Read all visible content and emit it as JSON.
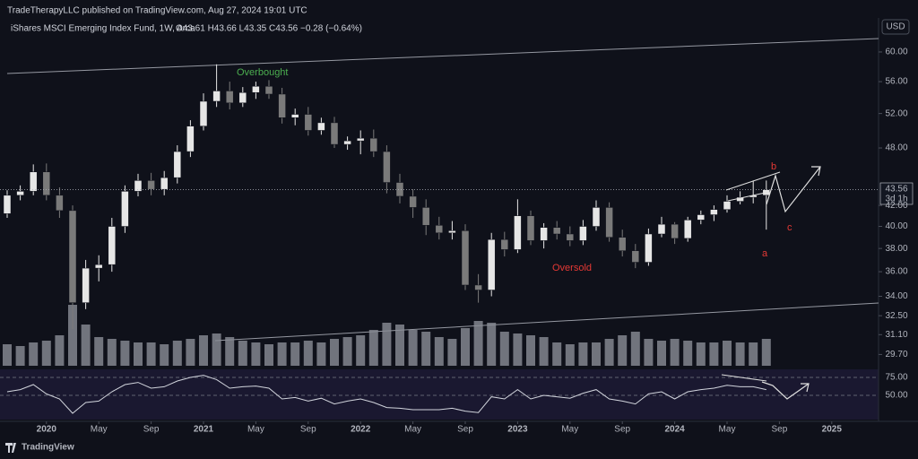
{
  "header": {
    "publisher": "TradeTherapyLLC published on TradingView.com, Aug 27, 2024 19:01 UTC",
    "brand": "TradingView"
  },
  "chart_data": {
    "type": "candlestick",
    "title": "iShares MSCI Emerging Index Fund, 1W, Arca",
    "ohlc_legend": "O43.61 H43.66 L43.35 C43.56 −0.28 (−0.64%)",
    "currency": "USD",
    "countdown": "3d 1h",
    "log_scale": true,
    "up_color": "#e6e6e6",
    "down_color": "#7a7a7a",
    "x": [
      "2019-10",
      "2019-11",
      "2019-12",
      "2020-01",
      "2020-02",
      "2020-03",
      "2020-04",
      "2020-05",
      "2020-06",
      "2020-07",
      "2020-08",
      "2020-09",
      "2020-10",
      "2020-11",
      "2020-12",
      "2021-01",
      "2021-02",
      "2021-03",
      "2021-04",
      "2021-05",
      "2021-06",
      "2021-07",
      "2021-08",
      "2021-09",
      "2021-10",
      "2021-11",
      "2021-12",
      "2022-01",
      "2022-02",
      "2022-03",
      "2022-04",
      "2022-05",
      "2022-06",
      "2022-07",
      "2022-08",
      "2022-09",
      "2022-10",
      "2022-11",
      "2022-12",
      "2023-01",
      "2023-02",
      "2023-03",
      "2023-04",
      "2023-05",
      "2023-06",
      "2023-07",
      "2023-08",
      "2023-09",
      "2023-10",
      "2023-11",
      "2023-12",
      "2024-01",
      "2024-02",
      "2024-03",
      "2024-04",
      "2024-05",
      "2024-06",
      "2024-07",
      "2024-08"
    ],
    "open": [
      41.2,
      43.0,
      43.4,
      45.4,
      43.0,
      41.5,
      33.5,
      36.3,
      36.6,
      40.0,
      43.4,
      44.5,
      43.6,
      44.8,
      47.6,
      50.5,
      53.5,
      54.8,
      53.3,
      54.6,
      55.4,
      54.4,
      51.5,
      51.9,
      50.0,
      50.9,
      48.4,
      48.8,
      49.1,
      47.6,
      44.3,
      42.9,
      41.8,
      40.1,
      39.4,
      39.6,
      34.9,
      34.5,
      38.8,
      37.9,
      41.0,
      38.7,
      39.9,
      39.3,
      38.7,
      40.0,
      41.8,
      39.0,
      37.8,
      36.8,
      39.3,
      40.2,
      38.9,
      40.6,
      41.1,
      41.6,
      42.4,
      42.8,
      43.0
    ],
    "high": [
      43.5,
      44.0,
      46.2,
      46.3,
      43.8,
      42.0,
      37.0,
      37.4,
      40.8,
      44.0,
      45.2,
      45.3,
      45.5,
      48.3,
      51.2,
      54.5,
      58.3,
      56.0,
      55.3,
      56.0,
      56.2,
      55.2,
      52.6,
      52.8,
      51.5,
      51.6,
      49.3,
      50.0,
      50.1,
      48.3,
      45.2,
      43.6,
      42.6,
      40.9,
      40.5,
      40.2,
      35.8,
      39.4,
      39.5,
      42.6,
      41.5,
      40.3,
      40.5,
      40.0,
      40.6,
      42.5,
      42.3,
      39.7,
      38.4,
      39.8,
      40.9,
      40.4,
      40.9,
      41.5,
      42.0,
      43.0,
      43.4,
      44.5,
      44.5
    ],
    "low": [
      40.8,
      42.5,
      43.0,
      42.5,
      40.8,
      31.5,
      33.0,
      35.2,
      36.0,
      39.4,
      42.9,
      43.0,
      43.0,
      44.2,
      47.0,
      50.0,
      52.8,
      52.5,
      52.8,
      53.8,
      53.8,
      50.8,
      50.6,
      49.4,
      49.5,
      48.0,
      47.8,
      47.3,
      47.0,
      43.2,
      42.2,
      40.8,
      39.2,
      38.8,
      38.8,
      34.5,
      33.5,
      34.0,
      37.3,
      37.6,
      38.3,
      38.0,
      38.8,
      38.2,
      38.3,
      39.6,
      38.6,
      37.3,
      36.3,
      36.5,
      39.0,
      38.4,
      38.6,
      40.2,
      40.5,
      41.3,
      42.1,
      42.2,
      39.7
    ],
    "close": [
      43.0,
      43.4,
      45.4,
      43.0,
      41.5,
      33.5,
      36.3,
      36.6,
      40.0,
      43.4,
      44.5,
      43.6,
      44.8,
      47.6,
      50.5,
      53.5,
      54.8,
      53.3,
      54.6,
      55.4,
      54.4,
      51.5,
      51.9,
      50.0,
      50.9,
      48.4,
      48.8,
      49.1,
      47.6,
      44.3,
      42.9,
      41.8,
      40.1,
      39.4,
      39.6,
      34.9,
      34.5,
      38.8,
      37.9,
      41.0,
      38.7,
      39.9,
      39.3,
      38.7,
      40.0,
      41.8,
      39.0,
      37.8,
      36.8,
      39.3,
      40.2,
      38.9,
      40.6,
      41.1,
      41.6,
      42.4,
      42.8,
      43.0,
      43.56
    ],
    "volume": [
      120,
      110,
      130,
      140,
      170,
      340,
      230,
      160,
      150,
      140,
      130,
      130,
      120,
      140,
      150,
      170,
      180,
      160,
      140,
      130,
      120,
      130,
      130,
      140,
      130,
      150,
      160,
      170,
      200,
      240,
      230,
      200,
      190,
      160,
      150,
      210,
      250,
      240,
      190,
      180,
      170,
      160,
      130,
      120,
      130,
      130,
      150,
      170,
      190,
      150,
      140,
      150,
      140,
      130,
      130,
      140,
      130,
      130,
      150
    ],
    "volume_ylim": [
      0,
      700
    ],
    "rsi": [
      55,
      58,
      65,
      52,
      45,
      25,
      40,
      42,
      55,
      65,
      68,
      60,
      62,
      70,
      75,
      78,
      72,
      60,
      62,
      63,
      60,
      45,
      47,
      42,
      46,
      38,
      42,
      45,
      40,
      33,
      32,
      30,
      30,
      30,
      32,
      28,
      26,
      48,
      45,
      58,
      45,
      50,
      48,
      46,
      53,
      58,
      45,
      42,
      38,
      52,
      55,
      45,
      55,
      58,
      60,
      64,
      62,
      62,
      58
    ],
    "rsi_ylim": [
      13.75,
      88.75
    ],
    "rsi_yticks": [
      {
        "value": 75,
        "label": "75.00"
      },
      {
        "value": 50,
        "label": "50.00"
      }
    ],
    "ylim": [
      28.93,
      62.29
    ],
    "yticks": [
      {
        "value": 60,
        "label": "60.00"
      },
      {
        "value": 56,
        "label": "56.00"
      },
      {
        "value": 52,
        "label": "52.00"
      },
      {
        "value": 48,
        "label": "48.00"
      },
      {
        "value": 42,
        "label": "42.00"
      },
      {
        "value": 40,
        "label": "40.00"
      },
      {
        "value": 38,
        "label": "38.00"
      },
      {
        "value": 36,
        "label": "36.00"
      },
      {
        "value": 34,
        "label": "34.00"
      },
      {
        "value": 32.5,
        "label": "32.50"
      },
      {
        "value": 31.1,
        "label": "31.10"
      },
      {
        "value": 29.7,
        "label": "29.70"
      }
    ],
    "xticks": [
      {
        "value": "2020-01",
        "label": "2020"
      },
      {
        "value": "2020-05",
        "label": "May"
      },
      {
        "value": "2020-09",
        "label": "Sep"
      },
      {
        "value": "2021-01",
        "label": "2021"
      },
      {
        "value": "2021-05",
        "label": "May"
      },
      {
        "value": "2021-09",
        "label": "Sep"
      },
      {
        "value": "2022-01",
        "label": "2022"
      },
      {
        "value": "2022-05",
        "label": "May"
      },
      {
        "value": "2022-09",
        "label": "Sep"
      },
      {
        "value": "2023-01",
        "label": "2023"
      },
      {
        "value": "2023-05",
        "label": "May"
      },
      {
        "value": "2023-09",
        "label": "Sep"
      },
      {
        "value": "2024-01",
        "label": "2024"
      },
      {
        "value": "2024-05",
        "label": "May"
      },
      {
        "value": "2024-09",
        "label": "Sep"
      },
      {
        "value": "2025-01",
        "label": "2025"
      }
    ],
    "annotations": {
      "overbought": "Overbought",
      "oversold": "Oversold",
      "a": "a",
      "b": "b",
      "c": "c"
    }
  }
}
